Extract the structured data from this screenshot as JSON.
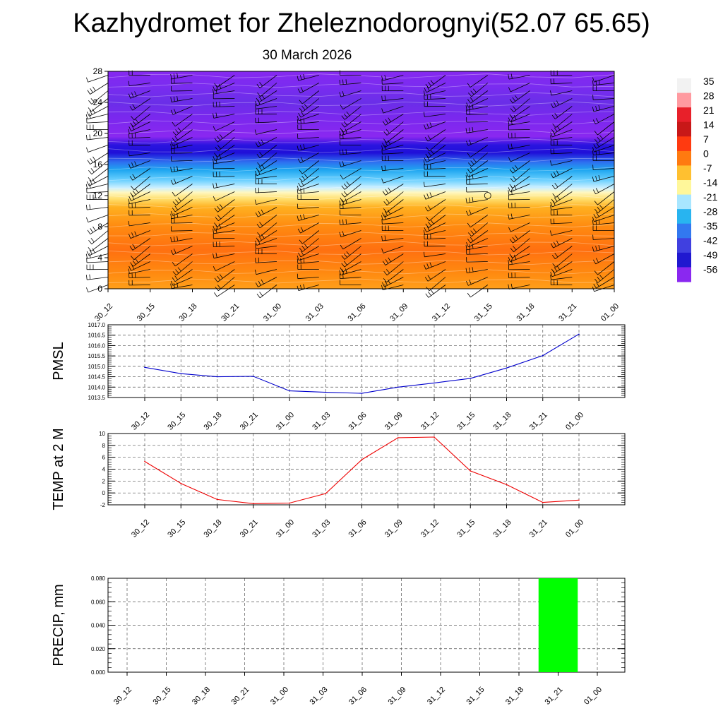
{
  "title": "Kazhydromet for Zheleznodorognyi(52.07 65.65)",
  "subtitle": "30 March 2026",
  "time_labels": [
    "30_12",
    "30_15",
    "30_18",
    "30_21",
    "31_00",
    "31_03",
    "31_06",
    "31_09",
    "31_12",
    "31_15",
    "31_18",
    "31_21",
    "01_00"
  ],
  "chart_data": [
    {
      "type": "heatmap",
      "name": "temperature-wind-cross-section",
      "x_categories": [
        "30_12",
        "30_15",
        "30_18",
        "30_21",
        "31_00",
        "31_03",
        "31_06",
        "31_09",
        "31_12",
        "31_15",
        "31_18",
        "31_21",
        "01_00"
      ],
      "y_ticks": [
        0,
        4,
        8,
        12,
        16,
        20,
        24,
        28
      ],
      "ylim": [
        0,
        28
      ],
      "colorbar": {
        "labels": [
          "35",
          "28",
          "21",
          "14",
          "7",
          "0",
          "-7",
          "-14",
          "-21",
          "-28",
          "-35",
          "-42",
          "-49",
          "-56"
        ],
        "colors": [
          "#f2f2f2",
          "#ff9aa0",
          "#e8202a",
          "#c81818",
          "#ff3a10",
          "#ff7a10",
          "#ffc030",
          "#fff79a",
          "#a8e6ff",
          "#28b4f0",
          "#3278f0",
          "#4040e0",
          "#2018d0",
          "#8a28f0"
        ]
      },
      "profile": [
        {
          "h": 0,
          "t": 10,
          "color": "#ff9f1a"
        },
        {
          "h": 2,
          "t": 6,
          "color": "#ff8a10"
        },
        {
          "h": 5,
          "t": 4,
          "color": "#ff7010"
        },
        {
          "h": 8,
          "t": 3,
          "color": "#ff8a10"
        },
        {
          "h": 10.5,
          "t": 0,
          "color": "#ffb020"
        },
        {
          "h": 11.6,
          "t": -5,
          "color": "#ffe070"
        },
        {
          "h": 12.4,
          "t": -12,
          "color": "#fff7c0"
        },
        {
          "h": 13,
          "t": -16,
          "color": "#ccf0ff"
        },
        {
          "h": 14,
          "t": -22,
          "color": "#6ad0ff"
        },
        {
          "h": 15.3,
          "t": -30,
          "color": "#1ea6f0"
        },
        {
          "h": 16.3,
          "t": -38,
          "color": "#2e70f0"
        },
        {
          "h": 17.5,
          "t": -50,
          "color": "#1f10d8"
        },
        {
          "h": 18.5,
          "t": -55,
          "color": "#2a14e0"
        },
        {
          "h": 19.6,
          "t": -57,
          "color": "#8a28f0"
        },
        {
          "h": 22,
          "t": -58,
          "color": "#7a28ee"
        },
        {
          "h": 24,
          "t": -60,
          "color": "#6a2ee8"
        },
        {
          "h": 26,
          "t": -59,
          "color": "#7a2cf0"
        },
        {
          "h": 28,
          "t": -58,
          "color": "#8628f0"
        }
      ],
      "marker": {
        "x_index": 9,
        "height": 12
      }
    },
    {
      "type": "line",
      "name": "pmsl",
      "ylabel": "PMSL",
      "x": [
        "30_12",
        "30_15",
        "30_18",
        "30_21",
        "31_00",
        "31_03",
        "31_06",
        "31_09",
        "31_12",
        "31_15",
        "31_18",
        "31_21",
        "01_00"
      ],
      "values": [
        1014.95,
        1014.65,
        1014.5,
        1014.52,
        1013.82,
        1013.75,
        1013.7,
        1014.0,
        1014.2,
        1014.42,
        1014.92,
        1015.52,
        1016.55
      ],
      "ylim": [
        1013.5,
        1017.0
      ],
      "y_ticks": [
        "1013.5",
        "1014.0",
        "1014.5",
        "1015.0",
        "1015.5",
        "1016.0",
        "1016.5",
        "1017.0"
      ],
      "color": "#0000cc"
    },
    {
      "type": "line",
      "name": "temp-2m",
      "ylabel": "TEMP at 2 M",
      "x": [
        "30_12",
        "30_15",
        "30_18",
        "30_21",
        "31_00",
        "31_03",
        "31_06",
        "31_09",
        "31_12",
        "31_15",
        "31_18",
        "31_21",
        "01_00"
      ],
      "values": [
        5.3,
        1.6,
        -1.1,
        -1.8,
        -1.7,
        -0.1,
        5.6,
        9.3,
        9.4,
        3.7,
        1.4,
        -1.6,
        -1.2
      ],
      "ylim": [
        -2,
        10
      ],
      "y_ticks": [
        "-2",
        "0",
        "2",
        "4",
        "6",
        "8",
        "10"
      ],
      "color": "#ee0000"
    },
    {
      "type": "bar",
      "name": "precip",
      "ylabel": "PRECIP, mm",
      "categories": [
        "30_12",
        "30_15",
        "30_18",
        "30_21",
        "31_00",
        "31_03",
        "31_06",
        "31_09",
        "31_12",
        "31_15",
        "31_18",
        "31_21",
        "01_00"
      ],
      "values": [
        0,
        0,
        0,
        0,
        0,
        0,
        0,
        0,
        0,
        0,
        0,
        0.08,
        0
      ],
      "ylim": [
        0,
        0.08
      ],
      "y_ticks": [
        "0.000",
        "0.020",
        "0.040",
        "0.060",
        "0.080"
      ],
      "color": "#00ff00"
    }
  ]
}
